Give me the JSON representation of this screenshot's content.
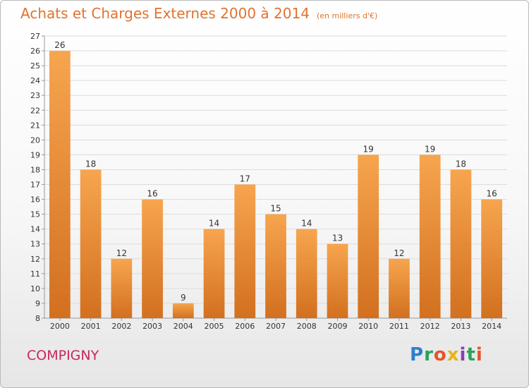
{
  "title": "Achats et Charges Externes 2000 à 2014",
  "title_unit": "(en milliers d'€)",
  "town": "COMPIGNY",
  "brand": "Proxiti",
  "colors": {
    "bar_light": "#f7a54f",
    "bar_dark": "#d2701f",
    "title": "#e0732f",
    "town": "#c8285a",
    "grid": "#dcdcdc",
    "axis_text": "#333333"
  },
  "chart_data": {
    "type": "bar",
    "title": "Achats et Charges Externes 2000 à 2014",
    "subtitle": "(en milliers d'€)",
    "categories": [
      "2000",
      "2001",
      "2002",
      "2003",
      "2004",
      "2005",
      "2006",
      "2007",
      "2008",
      "2009",
      "2010",
      "2011",
      "2012",
      "2013",
      "2014"
    ],
    "values": [
      26,
      18,
      12,
      16,
      9,
      14,
      17,
      15,
      14,
      13,
      19,
      12,
      19,
      18,
      16
    ],
    "ylim": [
      8,
      27
    ],
    "yticks": [
      8,
      9,
      10,
      11,
      12,
      13,
      14,
      15,
      16,
      17,
      18,
      19,
      20,
      21,
      22,
      23,
      24,
      25,
      26,
      27
    ],
    "grid": true,
    "data_labels": true,
    "legend": "none"
  }
}
